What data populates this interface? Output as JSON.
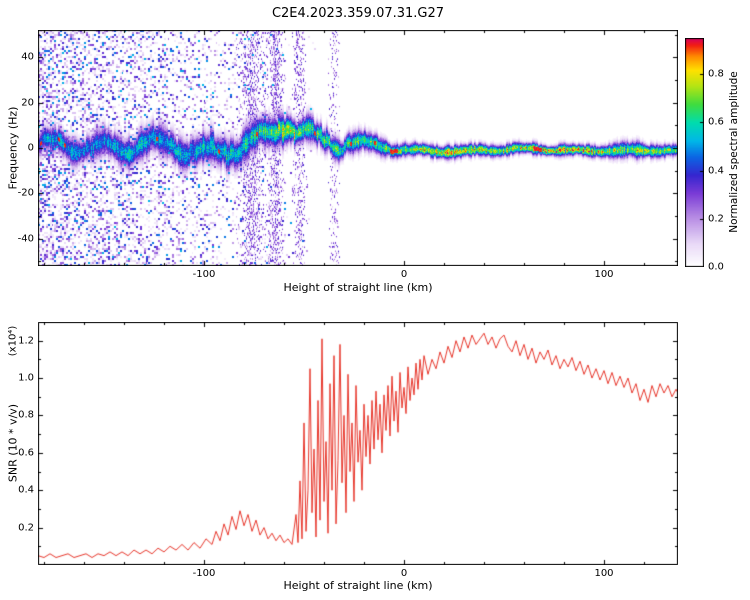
{
  "chart_data": [
    {
      "type": "heatmap",
      "title": "C2E4.2023.359.07.31.G27",
      "xlabel": "Height of straight line (km)",
      "ylabel": "Frequency (Hz)",
      "xlim": [
        -183,
        137
      ],
      "ylim": [
        -52,
        52
      ],
      "xticks": [
        -100,
        0,
        100
      ],
      "yticks": [
        40,
        20,
        0,
        -20,
        -40
      ],
      "grid": false,
      "colorbar": {
        "label": "Normalized spectral amplitude",
        "ticks": [
          0,
          0.2,
          0.4,
          0.6,
          0.8
        ],
        "vmax": 0.95,
        "position": "right"
      },
      "colormap": [
        [
          0.0,
          "#ffffff"
        ],
        [
          0.1,
          "#e9d9f7"
        ],
        [
          0.22,
          "#b488e3"
        ],
        [
          0.32,
          "#7a3bd6"
        ],
        [
          0.4,
          "#3526cf"
        ],
        [
          0.48,
          "#0b66e4"
        ],
        [
          0.55,
          "#00b7e8"
        ],
        [
          0.63,
          "#00dcae"
        ],
        [
          0.71,
          "#3fdc3f"
        ],
        [
          0.79,
          "#b4e414"
        ],
        [
          0.86,
          "#ffe100"
        ],
        [
          0.92,
          "#ff8c00"
        ],
        [
          0.97,
          "#f21d13"
        ],
        [
          1.0,
          "#d4005f"
        ]
      ],
      "band": [
        [
          -183,
          0,
          7,
          0.5
        ],
        [
          -170,
          0.5,
          8,
          0.55
        ],
        [
          -158,
          1,
          8,
          0.52
        ],
        [
          -148,
          0,
          9,
          0.55
        ],
        [
          -138,
          -0.5,
          9,
          0.58
        ],
        [
          -128,
          1,
          9,
          0.55
        ],
        [
          -118,
          2,
          9,
          0.58
        ],
        [
          -108,
          1,
          9,
          0.56
        ],
        [
          -98,
          0.5,
          10,
          0.6
        ],
        [
          -88,
          1,
          10,
          0.58
        ],
        [
          -78,
          2,
          10,
          0.62
        ],
        [
          -68,
          3.5,
          10,
          0.66
        ],
        [
          -61,
          7,
          9,
          0.74
        ],
        [
          -57,
          8,
          8,
          0.78
        ],
        [
          -51,
          5.5,
          8,
          0.68
        ],
        [
          -44,
          4,
          7.5,
          0.66
        ],
        [
          -37,
          3.5,
          7,
          0.68
        ],
        [
          -28,
          3,
          6.5,
          0.66
        ],
        [
          -19,
          1.5,
          6,
          0.68
        ],
        [
          -11,
          0.5,
          5,
          0.7
        ],
        [
          -4,
          -0.5,
          4.5,
          0.7
        ],
        [
          3,
          -1,
          4,
          0.74
        ],
        [
          12,
          -1,
          4,
          0.85
        ],
        [
          22,
          -1,
          4,
          0.88
        ],
        [
          34,
          -1,
          4,
          0.84
        ],
        [
          46,
          -1,
          3.6,
          0.78
        ],
        [
          58,
          -1,
          3.4,
          0.8
        ],
        [
          70,
          -1,
          3.4,
          0.84
        ],
        [
          82,
          -1,
          3.4,
          0.86
        ],
        [
          94,
          -1,
          3.4,
          0.8
        ],
        [
          104,
          -1,
          4,
          0.75
        ],
        [
          112,
          -1.2,
          5.5,
          0.72
        ],
        [
          122,
          -1,
          4,
          0.77
        ],
        [
          137,
          -1,
          4,
          0.75
        ]
      ],
      "noise": {
        "x_start": -183,
        "x_end": -42,
        "max_density": 0.5
      },
      "streaks": [
        [
          -76,
          5,
          0.3
        ],
        [
          -64,
          3,
          0.33
        ],
        [
          -52,
          2.5,
          0.22
        ],
        [
          -35,
          2,
          0.15
        ]
      ],
      "hotspot_prob_left": 0.05,
      "hotspot_prob_right": 0.22
    },
    {
      "type": "line",
      "xlabel": "Height of straight line (km)",
      "ylabel": "SNR (10 * v/v)",
      "y_multiplier": "(x10⁴)",
      "xlim": [
        -183,
        137
      ],
      "ylim": [
        0,
        1.3
      ],
      "xticks": [
        -100,
        0,
        100
      ],
      "yticks": [
        0.2,
        0.4,
        0.6,
        0.8,
        1.0,
        1.2
      ],
      "color": "#e8372c",
      "grid": false,
      "points": [
        [
          -183,
          0.05
        ],
        [
          -180,
          0.04
        ],
        [
          -177,
          0.06
        ],
        [
          -174,
          0.04
        ],
        [
          -171,
          0.05
        ],
        [
          -168,
          0.06
        ],
        [
          -165,
          0.04
        ],
        [
          -162,
          0.05
        ],
        [
          -159,
          0.06
        ],
        [
          -156,
          0.04
        ],
        [
          -153,
          0.06
        ],
        [
          -150,
          0.05
        ],
        [
          -147,
          0.07
        ],
        [
          -144,
          0.05
        ],
        [
          -141,
          0.07
        ],
        [
          -138,
          0.05
        ],
        [
          -135,
          0.08
        ],
        [
          -132,
          0.06
        ],
        [
          -129,
          0.08
        ],
        [
          -126,
          0.06
        ],
        [
          -123,
          0.09
        ],
        [
          -120,
          0.07
        ],
        [
          -117,
          0.1
        ],
        [
          -114,
          0.08
        ],
        [
          -111,
          0.11
        ],
        [
          -108,
          0.08
        ],
        [
          -105,
          0.12
        ],
        [
          -102,
          0.09
        ],
        [
          -99,
          0.14
        ],
        [
          -96,
          0.11
        ],
        [
          -94,
          0.18
        ],
        [
          -92,
          0.13
        ],
        [
          -90,
          0.22
        ],
        [
          -88,
          0.16
        ],
        [
          -86,
          0.26
        ],
        [
          -84,
          0.19
        ],
        [
          -82,
          0.29
        ],
        [
          -80,
          0.21
        ],
        [
          -78,
          0.27
        ],
        [
          -76,
          0.18
        ],
        [
          -74,
          0.24
        ],
        [
          -72,
          0.16
        ],
        [
          -70,
          0.2
        ],
        [
          -68,
          0.14
        ],
        [
          -66,
          0.17
        ],
        [
          -64,
          0.13
        ],
        [
          -62,
          0.16
        ],
        [
          -60,
          0.12
        ],
        [
          -58,
          0.14
        ],
        [
          -56,
          0.11
        ],
        [
          -54,
          0.27
        ],
        [
          -53,
          0.12
        ],
        [
          -52,
          0.45
        ],
        [
          -51,
          0.14
        ],
        [
          -50,
          0.76
        ],
        [
          -49,
          0.18
        ],
        [
          -48,
          0.4
        ],
        [
          -47,
          1.05
        ],
        [
          -46,
          0.28
        ],
        [
          -45,
          0.62
        ],
        [
          -44,
          0.15
        ],
        [
          -43,
          0.88
        ],
        [
          -42,
          0.24
        ],
        [
          -41,
          1.21
        ],
        [
          -40,
          0.34
        ],
        [
          -39,
          0.66
        ],
        [
          -38,
          0.17
        ],
        [
          -37,
          0.97
        ],
        [
          -36,
          0.4
        ],
        [
          -35,
          1.12
        ],
        [
          -34,
          0.22
        ],
        [
          -33,
          0.56
        ],
        [
          -32,
          1.18
        ],
        [
          -31,
          0.44
        ],
        [
          -30,
          0.8
        ],
        [
          -29,
          0.28
        ],
        [
          -28,
          1.02
        ],
        [
          -27,
          0.5
        ],
        [
          -26,
          0.76
        ],
        [
          -25,
          0.34
        ],
        [
          -24,
          0.96
        ],
        [
          -23,
          0.55
        ],
        [
          -22,
          0.72
        ],
        [
          -21,
          0.4
        ],
        [
          -20,
          0.86
        ],
        [
          -19,
          0.58
        ],
        [
          -18,
          0.8
        ],
        [
          -17,
          0.54
        ],
        [
          -16,
          0.88
        ],
        [
          -15,
          0.62
        ],
        [
          -14,
          0.93
        ],
        [
          -13,
          0.67
        ],
        [
          -12,
          0.86
        ],
        [
          -11,
          0.6
        ],
        [
          -10,
          0.91
        ],
        [
          -9,
          0.72
        ],
        [
          -8,
          0.96
        ],
        [
          -7,
          0.69
        ],
        [
          -6,
          1.01
        ],
        [
          -5,
          0.77
        ],
        [
          -4,
          0.93
        ],
        [
          -3,
          0.71
        ],
        [
          -2,
          1.03
        ],
        [
          -1,
          0.84
        ],
        [
          0,
          0.95
        ],
        [
          1,
          0.81
        ],
        [
          2,
          1.06
        ],
        [
          3,
          0.88
        ],
        [
          4,
          1.0
        ],
        [
          5,
          0.91
        ],
        [
          6,
          1.08
        ],
        [
          7,
          0.94
        ],
        [
          8,
          1.1
        ],
        [
          9,
          0.99
        ],
        [
          10,
          1.12
        ],
        [
          12,
          1.02
        ],
        [
          14,
          1.1
        ],
        [
          16,
          1.05
        ],
        [
          18,
          1.14
        ],
        [
          20,
          1.08
        ],
        [
          22,
          1.17
        ],
        [
          24,
          1.11
        ],
        [
          26,
          1.2
        ],
        [
          28,
          1.14
        ],
        [
          30,
          1.22
        ],
        [
          32,
          1.16
        ],
        [
          34,
          1.23
        ],
        [
          36,
          1.18
        ],
        [
          38,
          1.21
        ],
        [
          40,
          1.24
        ],
        [
          42,
          1.18
        ],
        [
          44,
          1.22
        ],
        [
          46,
          1.16
        ],
        [
          48,
          1.21
        ],
        [
          50,
          1.23
        ],
        [
          52,
          1.17
        ],
        [
          54,
          1.14
        ],
        [
          56,
          1.2
        ],
        [
          58,
          1.12
        ],
        [
          60,
          1.18
        ],
        [
          62,
          1.1
        ],
        [
          64,
          1.16
        ],
        [
          66,
          1.08
        ],
        [
          68,
          1.14
        ],
        [
          70,
          1.1
        ],
        [
          72,
          1.15
        ],
        [
          74,
          1.07
        ],
        [
          76,
          1.12
        ],
        [
          78,
          1.05
        ],
        [
          80,
          1.1
        ],
        [
          82,
          1.06
        ],
        [
          84,
          1.11
        ],
        [
          86,
          1.04
        ],
        [
          88,
          1.09
        ],
        [
          90,
          1.02
        ],
        [
          92,
          1.07
        ],
        [
          94,
          1.0
        ],
        [
          96,
          1.05
        ],
        [
          98,
          0.99
        ],
        [
          100,
          1.04
        ],
        [
          102,
          0.97
        ],
        [
          104,
          1.03
        ],
        [
          106,
          0.96
        ],
        [
          108,
          1.01
        ],
        [
          110,
          0.95
        ],
        [
          112,
          1.0
        ],
        [
          114,
          0.92
        ],
        [
          116,
          0.97
        ],
        [
          118,
          0.88
        ],
        [
          120,
          0.94
        ],
        [
          122,
          0.87
        ],
        [
          124,
          0.96
        ],
        [
          126,
          0.9
        ],
        [
          128,
          0.97
        ],
        [
          130,
          0.92
        ],
        [
          132,
          0.96
        ],
        [
          134,
          0.9
        ],
        [
          136,
          0.94
        ],
        [
          137,
          0.92
        ]
      ]
    }
  ]
}
